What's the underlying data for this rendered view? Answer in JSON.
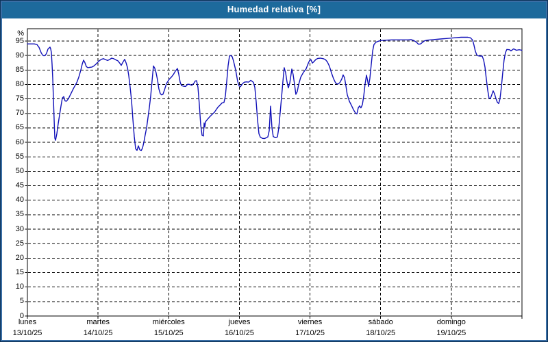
{
  "window": {
    "title": "Humedad relativa [%]"
  },
  "colors": {
    "titlebar_bg": "#1d6a9c",
    "titlebar_text": "#ffffff",
    "frame_outer": "#0c3258",
    "frame_inner": "#3a6ea5",
    "plot_border": "#000000",
    "grid": "#000000",
    "line": "#1010b8",
    "background": "#ffffff",
    "label": "#000000"
  },
  "chart_data": {
    "type": "line",
    "title": "Humedad relativa [%]",
    "ylabel": "%",
    "ylim": [
      0,
      99.3
    ],
    "ytick_step": 5,
    "yticks": [
      0,
      5,
      10,
      15,
      20,
      25,
      30,
      35,
      40,
      45,
      50,
      55,
      60,
      65,
      70,
      75,
      80,
      85,
      90,
      95
    ],
    "ytop_label": "%",
    "grid": "dashed",
    "legend": "none",
    "x_days": [
      {
        "name": "lunes",
        "date": "13/10/25"
      },
      {
        "name": "martes",
        "date": "14/10/25"
      },
      {
        "name": "miércoles",
        "date": "15/10/25"
      },
      {
        "name": "jueves",
        "date": "16/10/25"
      },
      {
        "name": "viernes",
        "date": "17/10/25"
      },
      {
        "name": "sábado",
        "date": "18/10/25"
      },
      {
        "name": "domingo",
        "date": "19/10/25"
      }
    ],
    "series": [
      {
        "name": "Humedad relativa",
        "unit": "%",
        "points": [
          [
            0,
            94
          ],
          [
            0.097,
            94
          ],
          [
            0.136,
            93.8
          ],
          [
            0.165,
            92.8
          ],
          [
            0.194,
            91
          ],
          [
            0.213,
            90.2
          ],
          [
            0.233,
            89.9
          ],
          [
            0.252,
            90
          ],
          [
            0.271,
            90.8
          ],
          [
            0.291,
            92.2
          ],
          [
            0.32,
            92.9
          ],
          [
            0.33,
            92.3
          ],
          [
            0.339,
            91
          ],
          [
            0.349,
            87
          ],
          [
            0.359,
            82
          ],
          [
            0.368,
            75
          ],
          [
            0.378,
            68
          ],
          [
            0.388,
            61.5
          ],
          [
            0.398,
            60.7
          ],
          [
            0.417,
            63
          ],
          [
            0.436,
            66.5
          ],
          [
            0.456,
            69.5
          ],
          [
            0.475,
            72.5
          ],
          [
            0.494,
            75.3
          ],
          [
            0.514,
            75.8
          ],
          [
            0.533,
            74.3
          ],
          [
            0.553,
            74.2
          ],
          [
            0.572,
            74.8
          ],
          [
            0.591,
            75.6
          ],
          [
            0.62,
            77
          ],
          [
            0.65,
            78.5
          ],
          [
            0.679,
            79.8
          ],
          [
            0.698,
            80.6
          ],
          [
            0.727,
            82.5
          ],
          [
            0.756,
            85
          ],
          [
            0.776,
            87
          ],
          [
            0.795,
            88.4
          ],
          [
            0.814,
            87.5
          ],
          [
            0.834,
            86.2
          ],
          [
            0.853,
            85.8
          ],
          [
            0.882,
            85.9
          ],
          [
            0.911,
            86
          ],
          [
            0.941,
            86.4
          ],
          [
            0.97,
            87
          ],
          [
            0.989,
            87.5
          ],
          [
            1.018,
            88.2
          ],
          [
            1.047,
            88.7
          ],
          [
            1.076,
            88.9
          ],
          [
            1.105,
            88.6
          ],
          [
            1.134,
            88.3
          ],
          [
            1.163,
            88.6
          ],
          [
            1.193,
            89.1
          ],
          [
            1.222,
            88.9
          ],
          [
            1.251,
            88.5
          ],
          [
            1.28,
            88.2
          ],
          [
            1.309,
            87.3
          ],
          [
            1.328,
            86.6
          ],
          [
            1.348,
            87.5
          ],
          [
            1.377,
            88.7
          ],
          [
            1.396,
            87.5
          ],
          [
            1.416,
            85.8
          ],
          [
            1.435,
            83
          ],
          [
            1.454,
            79
          ],
          [
            1.474,
            74.5
          ],
          [
            1.493,
            68
          ],
          [
            1.512,
            62
          ],
          [
            1.532,
            57.8
          ],
          [
            1.551,
            57.2
          ],
          [
            1.571,
            58.8
          ],
          [
            1.59,
            57.5
          ],
          [
            1.609,
            57.1
          ],
          [
            1.629,
            58
          ],
          [
            1.648,
            60
          ],
          [
            1.667,
            62.5
          ],
          [
            1.687,
            65
          ],
          [
            1.706,
            68.5
          ],
          [
            1.726,
            72
          ],
          [
            1.745,
            76
          ],
          [
            1.764,
            81
          ],
          [
            1.784,
            86.4
          ],
          [
            1.803,
            85.6
          ],
          [
            1.822,
            84
          ],
          [
            1.842,
            81.5
          ],
          [
            1.861,
            78.5
          ],
          [
            1.881,
            76.8
          ],
          [
            1.9,
            76.4
          ],
          [
            1.919,
            76.6
          ],
          [
            1.939,
            78
          ],
          [
            1.968,
            80.3
          ],
          [
            2.007,
            81.8
          ],
          [
            2.036,
            82.5
          ],
          [
            2.065,
            83.4
          ],
          [
            2.094,
            84.6
          ],
          [
            2.123,
            85.5
          ],
          [
            2.143,
            83.5
          ],
          [
            2.162,
            80.8
          ],
          [
            2.181,
            79.6
          ],
          [
            2.21,
            79.4
          ],
          [
            2.24,
            79.3
          ],
          [
            2.269,
            80.1
          ],
          [
            2.298,
            80
          ],
          [
            2.327,
            79.7
          ],
          [
            2.356,
            80.4
          ],
          [
            2.375,
            81.2
          ],
          [
            2.395,
            81.3
          ],
          [
            2.414,
            79
          ],
          [
            2.434,
            73
          ],
          [
            2.453,
            66
          ],
          [
            2.472,
            62.4
          ],
          [
            2.492,
            62.2
          ],
          [
            2.501,
            66.7
          ],
          [
            2.511,
            65.3
          ],
          [
            2.521,
            67.1
          ],
          [
            2.55,
            68
          ],
          [
            2.579,
            68.8
          ],
          [
            2.608,
            69.5
          ],
          [
            2.647,
            70.4
          ],
          [
            2.695,
            72.1
          ],
          [
            2.724,
            72.8
          ],
          [
            2.753,
            73.6
          ],
          [
            2.783,
            73.8
          ],
          [
            2.802,
            76
          ],
          [
            2.821,
            81
          ],
          [
            2.841,
            86.5
          ],
          [
            2.86,
            89.8
          ],
          [
            2.879,
            90
          ],
          [
            2.899,
            89.6
          ],
          [
            2.918,
            88
          ],
          [
            2.947,
            85
          ],
          [
            2.976,
            81
          ],
          [
            2.996,
            79.5
          ],
          [
            3.015,
            79.2
          ],
          [
            3.044,
            80.3
          ],
          [
            3.073,
            80.8
          ],
          [
            3.102,
            80.9
          ],
          [
            3.131,
            80.8
          ],
          [
            3.161,
            81.4
          ],
          [
            3.18,
            81.1
          ],
          [
            3.199,
            80.7
          ],
          [
            3.219,
            79
          ],
          [
            3.238,
            74
          ],
          [
            3.257,
            68
          ],
          [
            3.277,
            63
          ],
          [
            3.296,
            61.8
          ],
          [
            3.325,
            61.4
          ],
          [
            3.354,
            61.3
          ],
          [
            3.383,
            61.6
          ],
          [
            3.403,
            61.9
          ],
          [
            3.422,
            64
          ],
          [
            3.442,
            72.5
          ],
          [
            3.461,
            65
          ],
          [
            3.48,
            62
          ],
          [
            3.51,
            61.6
          ],
          [
            3.539,
            61.9
          ],
          [
            3.558,
            65
          ],
          [
            3.577,
            70
          ],
          [
            3.597,
            75.5
          ],
          [
            3.616,
            81
          ],
          [
            3.635,
            85.8
          ],
          [
            3.655,
            84
          ],
          [
            3.674,
            81
          ],
          [
            3.693,
            78.8
          ],
          [
            3.713,
            80.5
          ],
          [
            3.732,
            83.5
          ],
          [
            3.742,
            85.3
          ],
          [
            3.761,
            83.5
          ],
          [
            3.781,
            80
          ],
          [
            3.8,
            76.6
          ],
          [
            3.819,
            77.5
          ],
          [
            3.839,
            80
          ],
          [
            3.868,
            82.5
          ],
          [
            3.907,
            84.2
          ],
          [
            3.945,
            85.4
          ],
          [
            3.975,
            87.3
          ],
          [
            3.994,
            88.3
          ],
          [
            4.013,
            88.6
          ],
          [
            4.033,
            87.4
          ],
          [
            4.052,
            87.8
          ],
          [
            4.081,
            88.6
          ],
          [
            4.11,
            89
          ],
          [
            4.149,
            89.1
          ],
          [
            4.188,
            88.9
          ],
          [
            4.217,
            88.6
          ],
          [
            4.246,
            87.8
          ],
          [
            4.275,
            86.3
          ],
          [
            4.304,
            84
          ],
          [
            4.333,
            82
          ],
          [
            4.363,
            80.5
          ],
          [
            4.392,
            80.1
          ],
          [
            4.421,
            80.6
          ],
          [
            4.45,
            81.9
          ],
          [
            4.469,
            83.3
          ],
          [
            4.489,
            82.3
          ],
          [
            4.508,
            79.5
          ],
          [
            4.527,
            76.5
          ],
          [
            4.557,
            74.2
          ],
          [
            4.586,
            72.8
          ],
          [
            4.615,
            71.3
          ],
          [
            4.644,
            70.1
          ],
          [
            4.663,
            69.8
          ],
          [
            4.683,
            71.9
          ],
          [
            4.702,
            72.6
          ],
          [
            4.721,
            71.9
          ],
          [
            4.741,
            73
          ],
          [
            4.76,
            76
          ],
          [
            4.779,
            80
          ],
          [
            4.799,
            83.2
          ],
          [
            4.818,
            81
          ],
          [
            4.828,
            79.3
          ],
          [
            4.847,
            82
          ],
          [
            4.867,
            87
          ],
          [
            4.886,
            91.5
          ],
          [
            4.905,
            93.8
          ],
          [
            4.934,
            94.6
          ],
          [
            4.964,
            94.9
          ],
          [
            5.002,
            95.2
          ],
          [
            5.08,
            95.3
          ],
          [
            5.157,
            95.4
          ],
          [
            5.235,
            95.4
          ],
          [
            5.313,
            95.4
          ],
          [
            5.39,
            95.4
          ],
          [
            5.429,
            95.5
          ],
          [
            5.468,
            95.2
          ],
          [
            5.507,
            94.6
          ],
          [
            5.536,
            93.9
          ],
          [
            5.565,
            94
          ],
          [
            5.594,
            94.6
          ],
          [
            5.623,
            95.1
          ],
          [
            5.662,
            95.3
          ],
          [
            5.749,
            95.5
          ],
          [
            5.846,
            95.7
          ],
          [
            5.943,
            95.9
          ],
          [
            6.04,
            96.1
          ],
          [
            6.137,
            96.3
          ],
          [
            6.234,
            96.3
          ],
          [
            6.272,
            96.1
          ],
          [
            6.302,
            95.3
          ],
          [
            6.321,
            93.5
          ],
          [
            6.34,
            91.5
          ],
          [
            6.36,
            90.2
          ],
          [
            6.379,
            89.9
          ],
          [
            6.408,
            89.8
          ],
          [
            6.437,
            89.8
          ],
          [
            6.457,
            88.5
          ],
          [
            6.476,
            86
          ],
          [
            6.495,
            82
          ],
          [
            6.515,
            78
          ],
          [
            6.534,
            75.3
          ],
          [
            6.553,
            75.1
          ],
          [
            6.573,
            76.5
          ],
          [
            6.592,
            77.8
          ],
          [
            6.611,
            76.8
          ],
          [
            6.631,
            75.2
          ],
          [
            6.65,
            73.9
          ],
          [
            6.67,
            73.4
          ],
          [
            6.689,
            75
          ],
          [
            6.708,
            79
          ],
          [
            6.728,
            84
          ],
          [
            6.747,
            88.5
          ],
          [
            6.766,
            91
          ],
          [
            6.786,
            92.1
          ],
          [
            6.824,
            92
          ],
          [
            6.844,
            91.6
          ],
          [
            6.882,
            92.3
          ],
          [
            6.921,
            91.8
          ],
          [
            6.96,
            92
          ],
          [
            6.999,
            91.8
          ]
        ]
      }
    ]
  }
}
